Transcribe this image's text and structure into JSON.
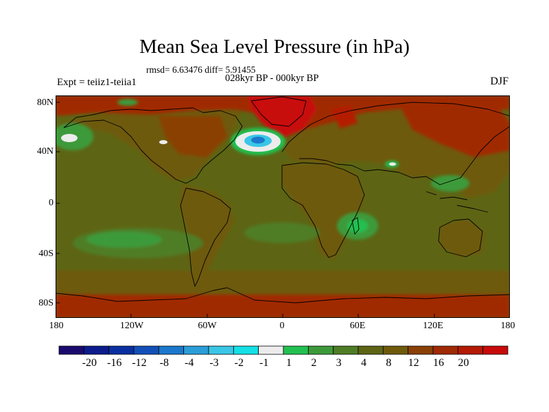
{
  "title": "Mean Sea Level Pressure (in hPa)",
  "stats_line": "rmsd= 6.63476 diff= 5.91455",
  "period": "028kyr BP - 000kyr BP",
  "experiment": "Expt = teiiz1-teiia1",
  "season": "DJF",
  "lat_ticks": [
    "80N",
    "40N",
    "0",
    "40S",
    "80S"
  ],
  "lon_ticks": [
    "180",
    "120W",
    "60W",
    "0",
    "60E",
    "120E",
    "180"
  ],
  "colorbar": {
    "colors": [
      "#1a0a6e",
      "#0c1c8c",
      "#0b2fa0",
      "#1250b8",
      "#1b78cc",
      "#2a9ed9",
      "#3ac6e6",
      "#14e0e6",
      "#ececec",
      "#22c050",
      "#3d9a3a",
      "#4f7d26",
      "#5d6514",
      "#6e5a0a",
      "#8a4006",
      "#a02a04",
      "#b41a04",
      "#c80a0a"
    ],
    "labels": [
      "-20",
      "-16",
      "-12",
      "-8",
      "-4",
      "-3",
      "-2",
      "-1",
      "1",
      "2",
      "3",
      "4",
      "8",
      "12",
      "16",
      "20"
    ]
  },
  "map": {
    "background_level": "#5d6514",
    "land_level": "#6e5a0a",
    "red_level": "#b41a04",
    "low_level": "#c80a0a",
    "positive_anomaly_levels": [
      "#4f7d26",
      "#3d9a3a",
      "#22c050"
    ],
    "negative_anomaly_levels": [
      "#ececec",
      "#3ac6e6",
      "#1b78cc"
    ]
  }
}
